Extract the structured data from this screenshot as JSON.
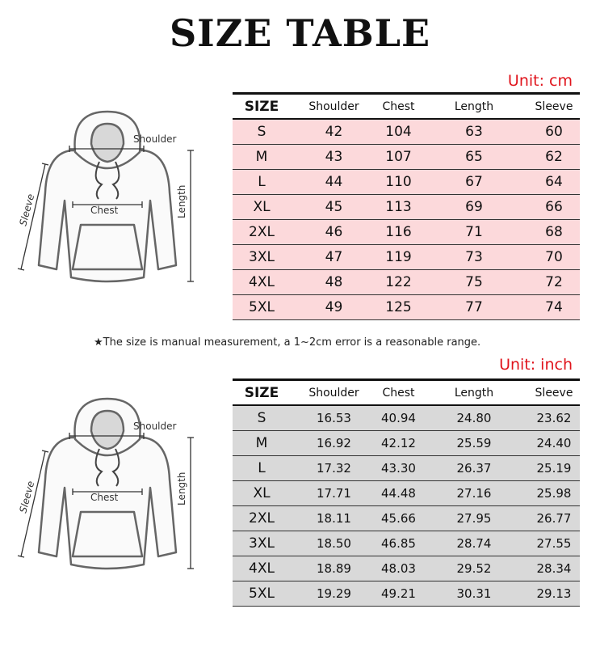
{
  "title": "SIZE TABLE",
  "note": "★The size is manual measurement, a 1~2cm error is a reasonable range.",
  "diagram_labels": {
    "shoulder": "Shoulder",
    "chest": "Chest",
    "length": "Length",
    "sleeve": "Sleeve"
  },
  "colors": {
    "unit": "#e0141c",
    "cm_rows": "#fcd9db",
    "inch_rows": "#d9d9d9"
  },
  "tables": [
    {
      "unit": "Unit: cm",
      "headers": [
        "SIZE",
        "Shoulder",
        "Chest",
        "Length",
        "Sleeve"
      ],
      "rows": [
        [
          "S",
          "42",
          "104",
          "63",
          "60"
        ],
        [
          "M",
          "43",
          "107",
          "65",
          "62"
        ],
        [
          "L",
          "44",
          "110",
          "67",
          "64"
        ],
        [
          "XL",
          "45",
          "113",
          "69",
          "66"
        ],
        [
          "2XL",
          "46",
          "116",
          "71",
          "68"
        ],
        [
          "3XL",
          "47",
          "119",
          "73",
          "70"
        ],
        [
          "4XL",
          "48",
          "122",
          "75",
          "72"
        ],
        [
          "5XL",
          "49",
          "125",
          "77",
          "74"
        ]
      ]
    },
    {
      "unit": "Unit: inch",
      "headers": [
        "SIZE",
        "Shoulder",
        "Chest",
        "Length",
        "Sleeve"
      ],
      "rows": [
        [
          "S",
          "16.53",
          "40.94",
          "24.80",
          "23.62"
        ],
        [
          "M",
          "16.92",
          "42.12",
          "25.59",
          "24.40"
        ],
        [
          "L",
          "17.32",
          "43.30",
          "26.37",
          "25.19"
        ],
        [
          "XL",
          "17.71",
          "44.48",
          "27.16",
          "25.98"
        ],
        [
          "2XL",
          "18.11",
          "45.66",
          "27.95",
          "26.77"
        ],
        [
          "3XL",
          "18.50",
          "46.85",
          "28.74",
          "27.55"
        ],
        [
          "4XL",
          "18.89",
          "48.03",
          "29.52",
          "28.34"
        ],
        [
          "5XL",
          "19.29",
          "49.21",
          "30.31",
          "29.13"
        ]
      ]
    }
  ]
}
